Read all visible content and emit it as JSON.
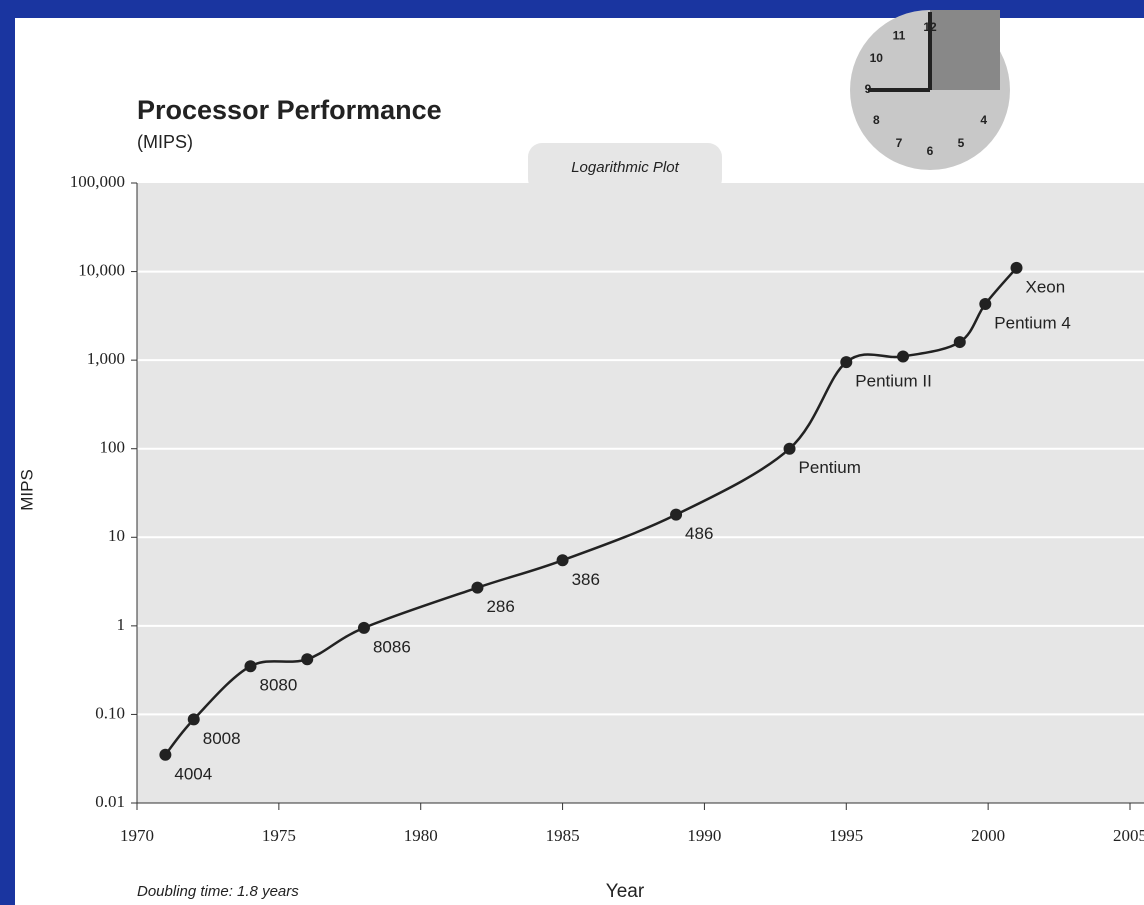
{
  "chart_data": {
    "type": "line",
    "title": "Processor Performance",
    "subtitle": "(MIPS)",
    "x_label": "Year",
    "y_label": "MIPS",
    "tab_label": "Logarithmic Plot",
    "note": "Doubling time: 1.8 years",
    "clock_numbers": [
      "12",
      "11",
      "10",
      "9",
      "8",
      "7",
      "6",
      "5",
      "4"
    ],
    "x": [
      1971,
      1972,
      1974,
      1976,
      1978,
      1982,
      1985,
      1989,
      1993,
      1995,
      1997,
      1999,
      1999.9,
      2001
    ],
    "series": [
      {
        "name": "MIPS",
        "color": "#222222",
        "values": [
          0.035,
          0.088,
          0.35,
          0.42,
          0.95,
          2.7,
          5.5,
          18,
          100,
          950,
          1100,
          1600,
          4300,
          11000
        ],
        "point_labels": [
          "4004",
          "8008",
          "8080",
          null,
          "8086",
          "286",
          "386",
          "486",
          "Pentium",
          "Pentium II",
          null,
          null,
          "Pentium 4",
          "Xeon"
        ]
      }
    ],
    "xlim": [
      1970,
      2005
    ],
    "xticks": [
      1970,
      1975,
      1980,
      1985,
      1990,
      1995,
      2000,
      2005
    ],
    "ylim": [
      0.01,
      100000
    ],
    "log_y": true,
    "yticks": [
      {
        "value": 0.01,
        "label": "0.01"
      },
      {
        "value": 0.1,
        "label": "0.10"
      },
      1,
      10,
      100,
      {
        "value": 1000,
        "label": "1,000"
      },
      {
        "value": 10000,
        "label": "10,000"
      },
      {
        "value": 100000,
        "label": "100,000"
      }
    ],
    "grid": true
  }
}
